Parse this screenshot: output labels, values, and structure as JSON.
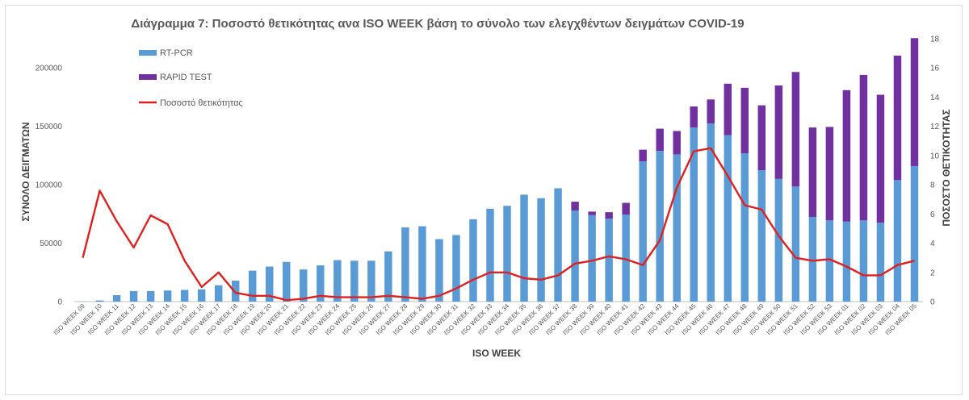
{
  "chart_data": {
    "type": "bar",
    "title": "Διάγραμμα 7: Ποσοστό  θετικότητας  ανα ISO WEEK  βάση  το σύνολο των ελεγχθέντων  δειγμάτων COVID-19",
    "xlabel": "ISO WEEK",
    "ylabel": "ΣΥΝΟΛΟ ΔΕΙΓΜΑΤΩΝ",
    "y2label": "ΠΟΣΟΣΤΟ ΘΕΤΙΚΟΤΗΤΑΣ",
    "ylim": [
      0,
      225000
    ],
    "y2lim": [
      0,
      18
    ],
    "yticks": [
      "0",
      "50000",
      "100000",
      "150000",
      "200000"
    ],
    "y2ticks": [
      "0",
      "2",
      "4",
      "6",
      "8",
      "10",
      "12",
      "14",
      "16",
      "18"
    ],
    "stacked": true,
    "legend_position": "top-left",
    "categories": [
      "ISO WEEK 09",
      "ISO WEEK 10",
      "ISO WEEK 11",
      "ISO WEEK 12",
      "ISO WEEK 13",
      "ISO WEEK 14",
      "ISO WEEK 15",
      "ISO WEEK 16",
      "ISO WEEK 17",
      "ISO WEEK 18",
      "ISO WEEK 19",
      "ISO WEEK 20",
      "ISO WEEK 21",
      "ISO WEEK 22",
      "ISO WEEK 23",
      "ISO WEEK 24",
      "ISO WEEK 25",
      "ISO WEEK 26",
      "ISO WEEK 27",
      "ISO WEEK 28",
      "ISO WEEK 29",
      "ISO WEEK 30",
      "ISO WEEK 31",
      "ISO WEEK 32",
      "ISO WEEK 33",
      "ISO WEEK 34",
      "ISO WEEK 35",
      "ISO WEEK 36",
      "ISO WEEK 37",
      "ISO WEEK 38",
      "ISO WEEK 39",
      "ISO WEEK 40",
      "ISO WEEK 41",
      "ISO WEEK 42",
      "ISO WEEK 43",
      "ISO WEEK 44",
      "ISO WEEK 45",
      "ISO WEEK 46",
      "ISO WEEK 47",
      "ISO WEEK 48",
      "ISO WEEK 49",
      "ISO WEEK 50",
      "ISO WEEK 51",
      "ISO WEEK 52",
      "ISO WEEK 53",
      "ISO WEEK 01",
      "ISO WEEK 02",
      "ISO WEEK 03",
      "ISO WEEK 04",
      "ISO WEEK 05"
    ],
    "series": [
      {
        "name": "RT-PCR",
        "kind": "bar",
        "axis": "left",
        "color": "#5b9bd5",
        "values": [
          100,
          1000,
          5500,
          9000,
          9000,
          9500,
          10000,
          10500,
          14000,
          18000,
          26500,
          30000,
          34000,
          27500,
          31000,
          35500,
          35000,
          35000,
          43000,
          63500,
          64500,
          53500,
          57000,
          70500,
          79500,
          82000,
          91500,
          88500,
          97000,
          78000,
          74000,
          71000,
          74500,
          120000,
          129000,
          126000,
          149000,
          152500,
          142500,
          127000,
          112500,
          105000,
          98500,
          72500,
          69500,
          68500,
          69500,
          67500,
          104000,
          116000
        ]
      },
      {
        "name": "RAPID TEST",
        "kind": "bar",
        "axis": "left",
        "color": "#7030a0",
        "values": [
          0,
          0,
          0,
          0,
          0,
          0,
          0,
          0,
          0,
          0,
          0,
          0,
          0,
          0,
          0,
          0,
          0,
          0,
          0,
          0,
          0,
          0,
          0,
          0,
          0,
          0,
          0,
          0,
          0,
          7500,
          3000,
          5500,
          10000,
          10000,
          19000,
          20000,
          18000,
          20500,
          44000,
          56000,
          55500,
          80000,
          98000,
          76500,
          80000,
          112500,
          124500,
          109500,
          106500,
          109500
        ]
      },
      {
        "name": "Ποσοστό θετικότητας",
        "kind": "line",
        "axis": "right",
        "color": "#e02020",
        "values": [
          3.0,
          7.6,
          5.5,
          3.7,
          5.9,
          5.3,
          2.8,
          1.0,
          2.0,
          0.6,
          0.4,
          0.4,
          0.1,
          0.2,
          0.4,
          0.3,
          0.3,
          0.3,
          0.4,
          0.3,
          0.2,
          0.4,
          0.9,
          1.5,
          2.0,
          2.0,
          1.6,
          1.5,
          1.8,
          2.6,
          2.8,
          3.1,
          2.9,
          2.5,
          4.2,
          7.8,
          10.3,
          10.5,
          8.6,
          6.6,
          6.3,
          4.5,
          3.0,
          2.8,
          2.9,
          2.4,
          1.8,
          1.8,
          2.5,
          2.8
        ]
      }
    ]
  }
}
